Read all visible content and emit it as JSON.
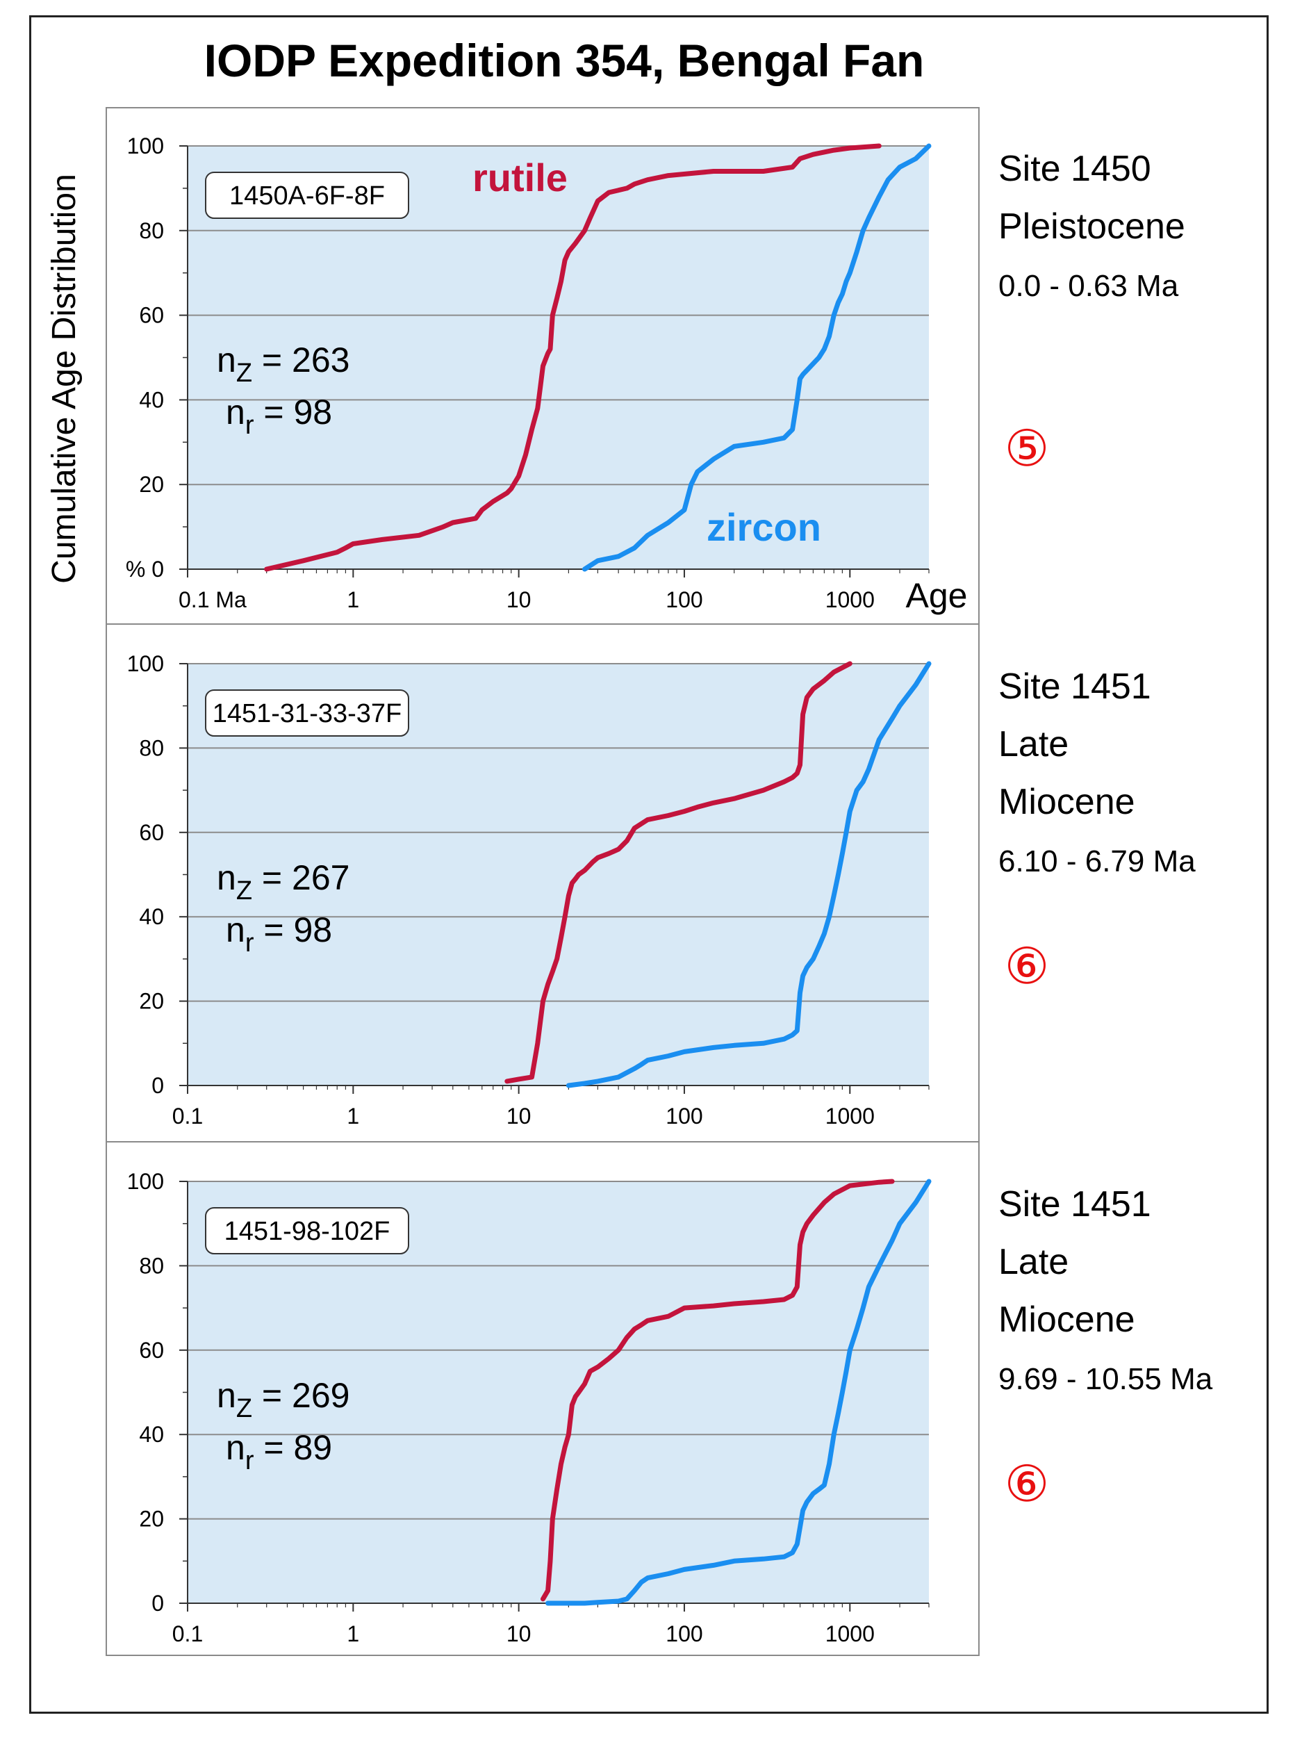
{
  "title": "IODP Expedition 354, Bengal Fan",
  "y_axis_label": "Cumulative Age Distribution",
  "x_axis_label": "Age",
  "series_labels": {
    "rutile": "rutile",
    "zircon": "zircon"
  },
  "colors": {
    "rutile": "#c3143c",
    "zircon": "#1a8ef0",
    "plot_bg": "#d8e9f6",
    "grid": "#8c8c8c",
    "circle": "#e81010"
  },
  "chart_data": [
    {
      "type": "line",
      "sample": "1450A-6F-8F",
      "site": "Site 1450",
      "epoch_lines": [
        "Pleistocene"
      ],
      "age_range": "0.0 - 0.63 Ma",
      "marker": "⑤",
      "nz_label": "n",
      "nz_sub": "Z",
      "nz_value": " = 263",
      "nr_label": "n",
      "nr_sub": "r",
      "nr_value": " = 98",
      "xscale": "log",
      "xlim": [
        0.1,
        3000
      ],
      "ylim": [
        0,
        100
      ],
      "x_ticks": [
        0.1,
        1,
        10,
        100,
        1000
      ],
      "x_tick_labels": [
        "0.1 Ma",
        "1",
        "10",
        "100",
        "1000"
      ],
      "y_ticks": [
        0,
        20,
        40,
        60,
        80,
        100
      ],
      "y_tick_labels": [
        "% 0",
        "20",
        "40",
        "60",
        "80",
        "100"
      ],
      "series": [
        {
          "name": "rutile",
          "x": [
            0.3,
            0.5,
            0.8,
            0.9,
            1.0,
            1.5,
            2.5,
            3.5,
            4.0,
            5.5,
            6.0,
            7.0,
            8.5,
            9.0,
            10,
            11,
            12,
            13,
            13.5,
            14,
            15,
            15.5,
            16,
            17,
            18,
            19,
            20,
            22,
            25,
            27,
            30,
            35,
            45,
            50,
            60,
            80,
            150,
            300,
            450,
            500,
            600,
            800,
            1000,
            1500
          ],
          "y": [
            0,
            2,
            4,
            5,
            6,
            7,
            8,
            10,
            11,
            12,
            14,
            16,
            18,
            19,
            22,
            27,
            33,
            38,
            43,
            48,
            51,
            52,
            60,
            64,
            68,
            73,
            75,
            77,
            80,
            83,
            87,
            89,
            90,
            91,
            92,
            93,
            94,
            94,
            95,
            97,
            98,
            99,
            99.5,
            100
          ]
        },
        {
          "name": "zircon",
          "x": [
            25,
            30,
            40,
            50,
            60,
            80,
            100,
            110,
            120,
            150,
            200,
            300,
            400,
            450,
            480,
            500,
            520,
            550,
            650,
            700,
            750,
            800,
            850,
            900,
            950,
            1000,
            1100,
            1200,
            1300,
            1500,
            1700,
            2000,
            2500,
            3000
          ],
          "y": [
            0,
            2,
            3,
            5,
            8,
            11,
            14,
            20,
            23,
            26,
            29,
            30,
            31,
            33,
            40,
            45,
            46,
            47,
            50,
            52,
            55,
            60,
            63,
            65,
            68,
            70,
            75,
            80,
            83,
            88,
            92,
            95,
            97,
            100
          ]
        }
      ]
    },
    {
      "type": "line",
      "sample": "1451-31-33-37F",
      "site": "Site 1451",
      "epoch_lines": [
        "Late",
        "Miocene"
      ],
      "age_range": "6.10 - 6.79 Ma",
      "marker": "⑥",
      "nz_label": "n",
      "nz_sub": "Z",
      "nz_value": " = 267",
      "nr_label": "n",
      "nr_sub": "r",
      "nr_value": " = 98",
      "xscale": "log",
      "xlim": [
        0.1,
        3000
      ],
      "ylim": [
        0,
        100
      ],
      "x_ticks": [
        0.1,
        1,
        10,
        100,
        1000
      ],
      "x_tick_labels": [
        "0.1",
        "1",
        "10",
        "100",
        "1000"
      ],
      "y_ticks": [
        0,
        20,
        40,
        60,
        80,
        100
      ],
      "y_tick_labels": [
        "0",
        "20",
        "40",
        "60",
        "80",
        "100"
      ],
      "series": [
        {
          "name": "rutile",
          "x": [
            8.5,
            10,
            12,
            13,
            14,
            15,
            16,
            17,
            18,
            19,
            20,
            21,
            22,
            23,
            25,
            28,
            30,
            35,
            40,
            45,
            50,
            60,
            80,
            100,
            120,
            150,
            200,
            300,
            400,
            450,
            480,
            500,
            520,
            550,
            600,
            700,
            800,
            1000
          ],
          "y": [
            1,
            1.5,
            2,
            10,
            20,
            24,
            27,
            30,
            35,
            40,
            45,
            48,
            49,
            50,
            51,
            53,
            54,
            55,
            56,
            58,
            61,
            63,
            64,
            65,
            66,
            67,
            68,
            70,
            72,
            73,
            74,
            76,
            88,
            92,
            94,
            96,
            98,
            100
          ]
        },
        {
          "name": "zircon",
          "x": [
            20,
            25,
            30,
            40,
            50,
            55,
            60,
            80,
            100,
            150,
            200,
            300,
            400,
            450,
            480,
            500,
            520,
            550,
            600,
            650,
            700,
            750,
            800,
            850,
            900,
            950,
            1000,
            1100,
            1200,
            1300,
            1500,
            1800,
            2000,
            2500,
            3000
          ],
          "y": [
            0,
            0.5,
            1,
            2,
            4,
            5,
            6,
            7,
            8,
            9,
            9.5,
            10,
            11,
            12,
            13,
            22,
            26,
            28,
            30,
            33,
            36,
            40,
            45,
            50,
            55,
            60,
            65,
            70,
            72,
            75,
            82,
            87,
            90,
            95,
            100
          ]
        }
      ]
    },
    {
      "type": "line",
      "sample": "1451-98-102F",
      "site": "Site 1451",
      "epoch_lines": [
        "Late",
        "Miocene"
      ],
      "age_range": "9.69 - 10.55 Ma",
      "marker": "⑥",
      "nz_label": "n",
      "nz_sub": "Z",
      "nz_value": " = 269",
      "nr_label": "n",
      "nr_sub": "r",
      "nr_value": " = 89",
      "xscale": "log",
      "xlim": [
        0.1,
        3000
      ],
      "ylim": [
        0,
        100
      ],
      "x_ticks": [
        0.1,
        1,
        10,
        100,
        1000
      ],
      "x_tick_labels": [
        "0.1",
        "1",
        "10",
        "100",
        "1000"
      ],
      "y_ticks": [
        0,
        20,
        40,
        60,
        80,
        100
      ],
      "y_tick_labels": [
        "0",
        "20",
        "40",
        "60",
        "80",
        "100"
      ],
      "series": [
        {
          "name": "rutile",
          "x": [
            14,
            15,
            15.5,
            16,
            17,
            18,
            19,
            20,
            21,
            22,
            23,
            25,
            27,
            30,
            35,
            40,
            45,
            50,
            55,
            60,
            80,
            100,
            150,
            200,
            300,
            400,
            450,
            480,
            500,
            520,
            550,
            600,
            700,
            800,
            1000,
            1500,
            1800
          ],
          "y": [
            1,
            3,
            10,
            20,
            27,
            33,
            37,
            40,
            47,
            49,
            50,
            52,
            55,
            56,
            58,
            60,
            63,
            65,
            66,
            67,
            68,
            70,
            70.5,
            71,
            71.5,
            72,
            73,
            75,
            85,
            88,
            90,
            92,
            95,
            97,
            99,
            99.8,
            100
          ]
        },
        {
          "name": "zircon",
          "x": [
            15,
            20,
            25,
            30,
            40,
            45,
            50,
            55,
            60,
            80,
            100,
            150,
            200,
            300,
            400,
            450,
            480,
            500,
            520,
            550,
            600,
            650,
            700,
            750,
            800,
            850,
            900,
            950,
            1000,
            1100,
            1200,
            1300,
            1500,
            1800,
            2000,
            2500,
            3000
          ],
          "y": [
            0,
            0,
            0,
            0.2,
            0.5,
            1,
            3,
            5,
            6,
            7,
            8,
            9,
            10,
            10.5,
            11,
            12,
            14,
            18,
            22,
            24,
            26,
            27,
            28,
            33,
            40,
            45,
            50,
            55,
            60,
            65,
            70,
            75,
            80,
            86,
            90,
            95,
            100
          ]
        }
      ]
    }
  ]
}
